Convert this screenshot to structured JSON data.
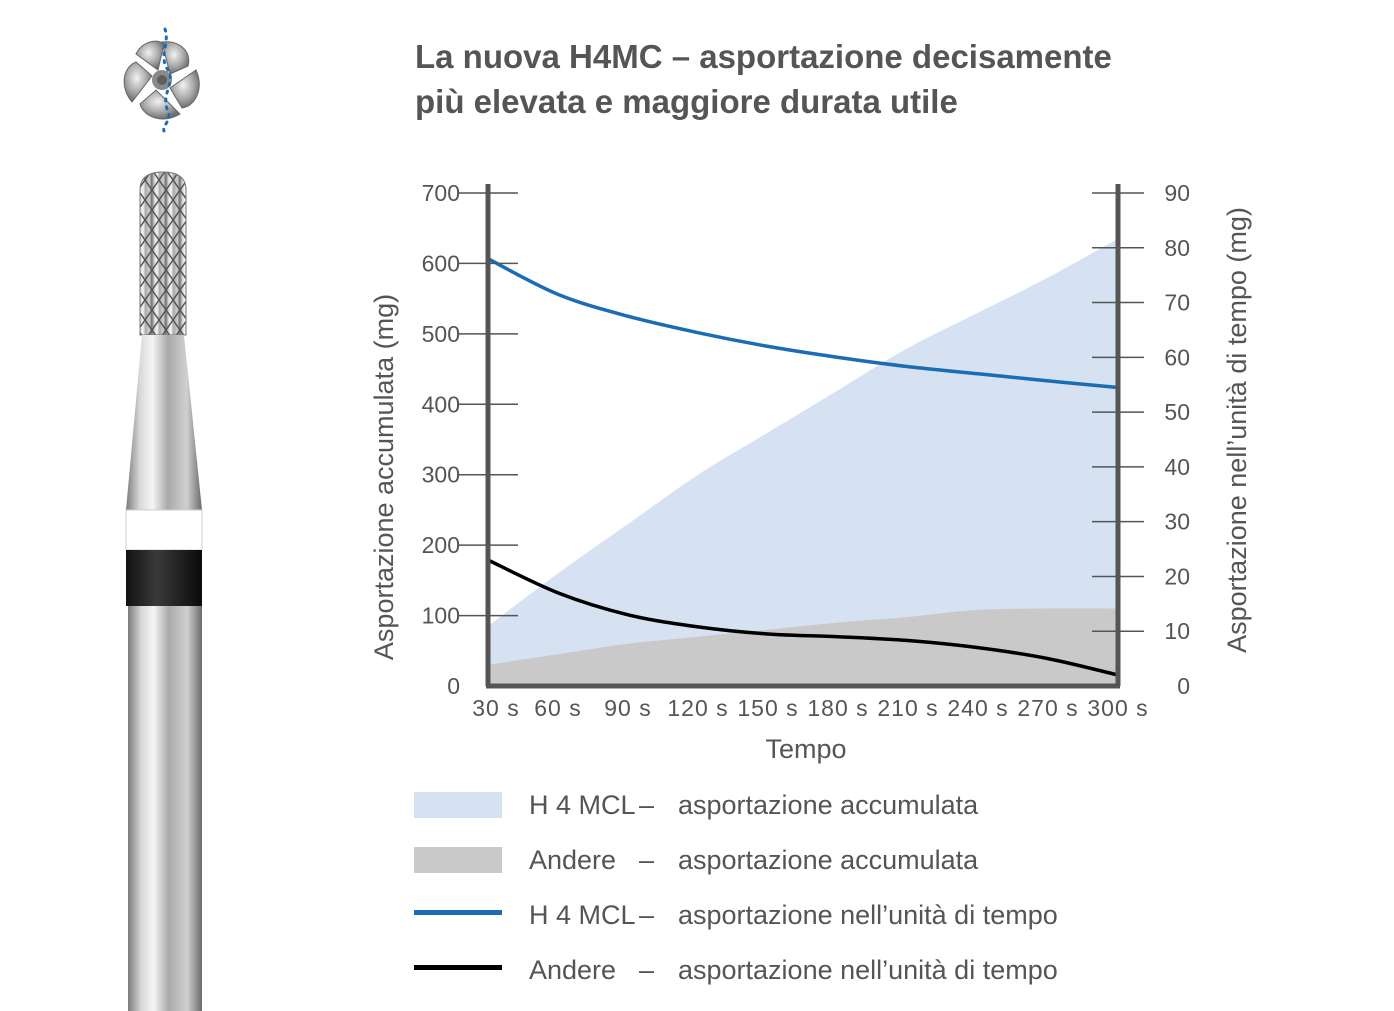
{
  "title": {
    "line1": "La nuova H4MC – asportazione decisamente",
    "line2": "più elevata e maggiore durata utile"
  },
  "images": {
    "bur_top_view": "bur-top-view-image",
    "bur_side_view": "bur-side-view-image"
  },
  "colors": {
    "h4mcl_area": "#d6e1f1",
    "andere_area": "#c9c9c9",
    "h4mcl_line": "#1a6db5",
    "andere_line": "#000000",
    "axis": "#555555"
  },
  "chart_data": {
    "type": "area",
    "title": "La nuova H4MC – asportazione decisamente più elevata e maggiore durata utile",
    "xlabel": "Tempo",
    "ylabel_left": "Asportazione accumulata (mg)",
    "ylabel_right": "Asportazione nell’unità di tempo (mg)",
    "categories": [
      "30 s",
      "60 s",
      "90 s",
      "120 s",
      "150 s",
      "180 s",
      "210 s",
      "240 s",
      "270 s",
      "300 s"
    ],
    "x": [
      30,
      60,
      90,
      120,
      150,
      180,
      210,
      240,
      270,
      300
    ],
    "ylim_left": [
      0,
      700
    ],
    "ylim_right": [
      0,
      90
    ],
    "yticks_left": [
      0,
      100,
      200,
      300,
      400,
      500,
      600,
      700
    ],
    "yticks_right": [
      0,
      10,
      20,
      30,
      40,
      50,
      60,
      70,
      80,
      90
    ],
    "series": [
      {
        "name": "H 4 MCL",
        "label": "asportazione accumulata",
        "type": "area",
        "axis": "left",
        "values": [
          85,
          160,
          230,
          300,
          360,
          420,
          480,
          530,
          580,
          635
        ]
      },
      {
        "name": "Andere",
        "label": "asportazione accumulata",
        "type": "area",
        "axis": "left",
        "values": [
          30,
          45,
          60,
          70,
          80,
          90,
          98,
          108,
          110,
          110
        ]
      },
      {
        "name": "H 4 MCL",
        "label": "asportazione nell’unità di tempo",
        "type": "line",
        "axis": "right",
        "values": [
          78,
          71.5,
          67.5,
          64.5,
          62,
          60,
          58.3,
          57,
          55.7,
          54.5
        ]
      },
      {
        "name": "Andere",
        "label": "asportazione nell’unità di tempo",
        "type": "line",
        "axis": "right",
        "values": [
          23,
          17,
          13,
          10.8,
          9.5,
          9,
          8.3,
          7,
          5,
          2
        ]
      }
    ],
    "legend_position": "bottom",
    "grid": false
  },
  "legend": {
    "separator": "–",
    "items": [
      {
        "name": "H 4 MCL",
        "desc": "asportazione accumulata"
      },
      {
        "name": "Andere",
        "desc": "asportazione accumulata"
      },
      {
        "name": "H 4 MCL",
        "desc": "asportazione nell’unità di tempo"
      },
      {
        "name": "Andere",
        "desc": "asportazione nell’unità di tempo"
      }
    ]
  }
}
